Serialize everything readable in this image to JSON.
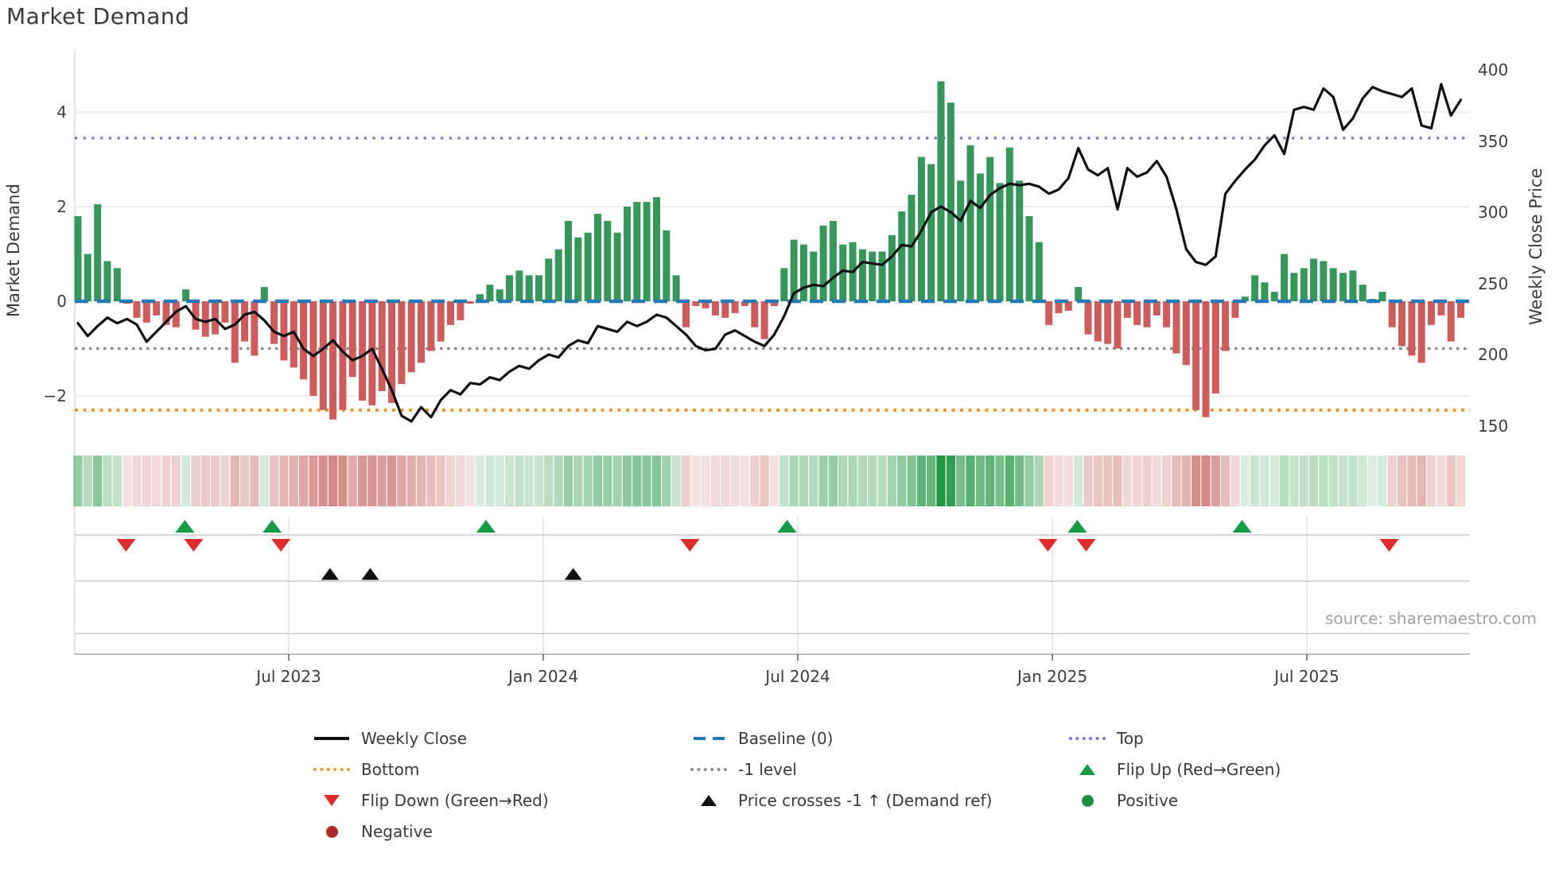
{
  "title": "Market Demand",
  "source_note": "source: sharemaestro.com",
  "axes": {
    "left_label": "Market Demand",
    "right_label": "Weekly Close Price",
    "left_ticks": [
      "4",
      "2",
      "0",
      "−2"
    ],
    "right_ticks": [
      "400",
      "350",
      "300",
      "250",
      "200",
      "150"
    ],
    "x_ticks": [
      "Jul 2023",
      "Jan 2024",
      "Jul 2024",
      "Jan 2025",
      "Jul 2025"
    ]
  },
  "legend": {
    "items": [
      {
        "swatch": "line-black",
        "label": "Weekly Close"
      },
      {
        "swatch": "dash-blue",
        "label": "Baseline (0)"
      },
      {
        "swatch": "dot-purple",
        "label": "Top"
      },
      {
        "swatch": "dot-orange",
        "label": "Bottom"
      },
      {
        "swatch": "dot-gray",
        "label": "-1 level"
      },
      {
        "swatch": "tri-up-green",
        "label": "Flip Up (Red→Green)"
      },
      {
        "swatch": "tri-down-red",
        "label": "Flip Down (Green→Red)"
      },
      {
        "swatch": "tri-up-black",
        "label": "Price crosses -1 ↑ (Demand ref)"
      },
      {
        "swatch": "circle-green",
        "label": "Positive"
      },
      {
        "swatch": "circle-darkred",
        "label": "Negative"
      }
    ]
  },
  "chart_data": {
    "type": "bar",
    "subtype": "weekly demand bars + weekly close line (dual axis) + demand heatmap strip + event marker rows",
    "title": "Market Demand",
    "xlabel": "",
    "ylabel": "Market Demand",
    "ylabel_right": "Weekly Close Price",
    "x_tick_labels": [
      "Jul 2023",
      "Jan 2024",
      "Jul 2024",
      "Jan 2025",
      "Jul 2025"
    ],
    "x_tick_weeks": [
      21.5,
      47.45,
      73.4,
      99.36,
      125.3
    ],
    "x_range_weeks": [
      0,
      141
    ],
    "y_left_tick_values": [
      4,
      2,
      0,
      -2
    ],
    "y_left_range": [
      -3.1,
      5.3
    ],
    "y_right_tick_values": [
      400,
      350,
      300,
      250,
      200,
      150
    ],
    "y_right_range": [
      136,
      414
    ],
    "grid": "horizontal only in main panel, vertical month gridlines in marker panels",
    "legend_position": "bottom",
    "ref_lines": {
      "baseline": 0,
      "top": 3.45,
      "bottom": -2.3,
      "minus1_level": -1
    },
    "demand_bars": [
      1.8,
      1.0,
      2.05,
      0.85,
      0.7,
      -0.05,
      -0.35,
      -0.45,
      -0.3,
      -0.5,
      -0.55,
      0.25,
      -0.6,
      -0.75,
      -0.7,
      -0.45,
      -1.3,
      -0.85,
      -1.15,
      0.3,
      -0.9,
      -1.25,
      -1.4,
      -1.65,
      -2.0,
      -2.3,
      -2.5,
      -2.3,
      -1.6,
      -2.1,
      -2.2,
      -1.9,
      -2.15,
      -1.75,
      -1.5,
      -1.3,
      -1.05,
      -0.85,
      -0.5,
      -0.4,
      -0.05,
      0.15,
      0.35,
      0.25,
      0.55,
      0.65,
      0.55,
      0.55,
      0.9,
      1.1,
      1.7,
      1.35,
      1.45,
      1.85,
      1.7,
      1.45,
      2.0,
      2.1,
      2.1,
      2.2,
      1.5,
      0.55,
      -0.55,
      -0.1,
      -0.15,
      -0.3,
      -0.35,
      -0.25,
      -0.1,
      -0.55,
      -0.8,
      -0.1,
      0.7,
      1.3,
      1.2,
      1.05,
      1.6,
      1.7,
      1.2,
      1.25,
      1.1,
      1.05,
      1.05,
      1.4,
      1.9,
      2.25,
      3.05,
      2.9,
      4.65,
      4.2,
      2.55,
      3.3,
      2.7,
      3.05,
      2.5,
      3.25,
      2.55,
      1.8,
      1.25,
      -0.5,
      -0.25,
      -0.2,
      0.3,
      -0.7,
      -0.85,
      -0.9,
      -1.0,
      -0.35,
      -0.5,
      -0.55,
      -0.3,
      -0.55,
      -1.1,
      -1.35,
      -2.3,
      -2.45,
      -1.95,
      -1.05,
      -0.35,
      0.1,
      0.55,
      0.4,
      0.2,
      1.0,
      0.6,
      0.7,
      0.9,
      0.85,
      0.7,
      0.6,
      0.65,
      0.35,
      0.05,
      0.2,
      -0.55,
      -0.95,
      -1.15,
      -1.3,
      -0.5,
      -0.3,
      -0.85,
      -0.35
    ],
    "weekly_close": [
      222,
      213,
      220,
      226,
      222,
      225,
      221,
      209,
      216,
      223,
      230,
      234,
      225,
      223,
      225,
      218,
      221,
      228,
      230,
      224,
      216,
      213,
      216,
      204,
      199,
      204,
      210,
      202,
      196,
      199,
      204,
      190,
      175,
      157,
      153,
      163,
      156,
      168,
      175,
      172,
      180,
      179,
      184,
      182,
      188,
      192,
      190,
      196,
      200,
      198,
      206,
      210,
      208,
      220,
      218,
      216,
      223,
      220,
      223,
      228,
      226,
      220,
      214,
      206,
      203,
      204,
      214,
      217,
      213,
      209,
      206,
      214,
      227,
      243,
      247,
      249,
      248,
      254,
      259,
      258,
      265,
      264,
      263,
      269,
      277,
      276,
      287,
      300,
      304,
      300,
      294,
      308,
      303,
      312,
      317,
      320,
      319,
      320,
      318,
      313,
      316,
      324,
      345,
      330,
      326,
      331,
      302,
      331,
      325,
      328,
      336,
      325,
      302,
      274,
      265,
      263,
      269,
      313,
      322,
      330,
      337,
      347,
      354,
      341,
      372,
      374,
      372,
      387,
      381,
      358,
      366,
      380,
      388,
      385,
      383,
      381,
      387,
      361,
      359,
      390,
      368,
      379
    ],
    "markers": {
      "flip_up_weeks": [
        10.9,
        19.8,
        41.6,
        72.3,
        101.9,
        118.7
      ],
      "flip_down_weeks": [
        4.9,
        11.8,
        20.7,
        62.4,
        98.9,
        102.8,
        133.7
      ],
      "price_cross_minus1_weeks": [
        25.7,
        29.8,
        50.5
      ]
    },
    "heatmap": "strip below main panel: per-week cell, green when demand>=0, red when demand<0, intensity proportional to |demand|",
    "colors": {
      "positive_bar": "#37965c",
      "negative_bar": "#cd5c5c",
      "price_line": "#111111",
      "baseline": "#2679b2",
      "top_line": "#7d78e0",
      "bottom_line": "#f39322",
      "minus1_line": "#8a8a8a",
      "flip_up": "#169b48",
      "flip_down": "#e02b2b",
      "price_cross": "#111111",
      "positive_dot": "#1d8f3f",
      "negative_dot": "#b02a2a",
      "heat_green": "rgba(34,150,66,1)",
      "heat_red": "rgba(186,70,64,1)"
    }
  }
}
